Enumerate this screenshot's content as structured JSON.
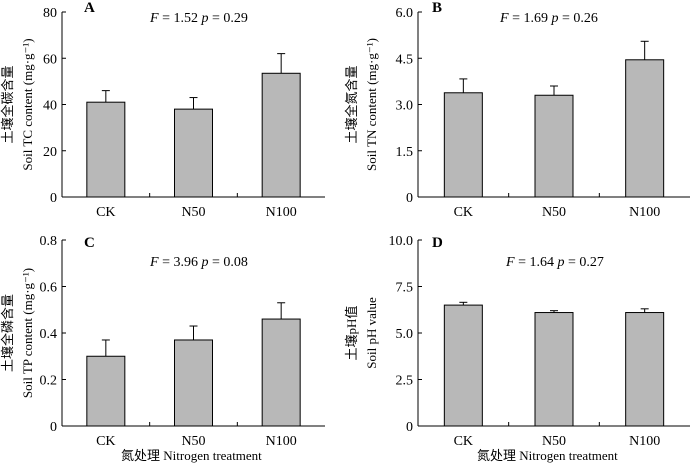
{
  "figure": {
    "x_title": "氮处理 Nitrogen treatment"
  },
  "chart_data": [
    {
      "type": "bar",
      "panel_letter": "A",
      "stats": {
        "f_label": "F",
        "f_value": "= 1.52",
        "p_label": "p",
        "p_value": "= 0.29"
      },
      "ylabel_cn": "土壤全碳含量",
      "ylabel_en": "Soil TC content (mg·g⁻¹)",
      "categories": [
        "CK",
        "N50",
        "N100"
      ],
      "values": [
        41,
        38,
        53.5
      ],
      "errors": [
        5,
        5,
        8.5
      ],
      "ylim": [
        0,
        80
      ],
      "yticks": [
        0,
        20,
        40,
        60,
        80
      ],
      "ytick_labels": [
        "0",
        "20",
        "40",
        "60",
        "80"
      ],
      "bar_color": "#b8b8b8"
    },
    {
      "type": "bar",
      "panel_letter": "B",
      "stats": {
        "f_label": "F",
        "f_value": "= 1.69",
        "p_label": "p",
        "p_value": "= 0.26"
      },
      "ylabel_cn": "土壤全氮含量",
      "ylabel_en": "Soil TN content (mg·g⁻¹)",
      "categories": [
        "CK",
        "N50",
        "N100"
      ],
      "values": [
        3.38,
        3.3,
        4.45
      ],
      "errors": [
        0.45,
        0.3,
        0.6
      ],
      "ylim": [
        0,
        6
      ],
      "yticks": [
        0,
        1.5,
        3,
        4.5,
        6
      ],
      "ytick_labels": [
        "0",
        "1.5",
        "3.0",
        "4.5",
        "6.0"
      ],
      "bar_color": "#b8b8b8"
    },
    {
      "type": "bar",
      "panel_letter": "C",
      "stats": {
        "f_label": "F",
        "f_value": "= 3.96",
        "p_label": "p",
        "p_value": "= 0.08"
      },
      "ylabel_cn": "土壤全磷含量",
      "ylabel_en": "Soil TP content (mg·g⁻¹)",
      "categories": [
        "CK",
        "N50",
        "N100"
      ],
      "values": [
        0.3,
        0.37,
        0.46
      ],
      "errors": [
        0.07,
        0.06,
        0.07
      ],
      "ylim": [
        0,
        0.8
      ],
      "yticks": [
        0,
        0.2,
        0.4,
        0.6,
        0.8
      ],
      "ytick_labels": [
        "0",
        "0.2",
        "0.4",
        "0.6",
        "0.8"
      ],
      "bar_color": "#b8b8b8"
    },
    {
      "type": "bar",
      "panel_letter": "D",
      "stats": {
        "f_label": "F",
        "f_value": "= 1.64",
        "p_label": "p",
        "p_value": "= 0.27"
      },
      "ylabel_cn": "土壤pH值",
      "ylabel_en": "Soil pH value",
      "categories": [
        "CK",
        "N50",
        "N100"
      ],
      "values": [
        6.5,
        6.1,
        6.1
      ],
      "errors": [
        0.15,
        0.1,
        0.2
      ],
      "ylim": [
        0,
        10
      ],
      "yticks": [
        0,
        2.5,
        5,
        7.5,
        10
      ],
      "ytick_labels": [
        "0",
        "2.5",
        "5.0",
        "7.5",
        "10.0"
      ],
      "bar_color": "#b8b8b8"
    }
  ]
}
